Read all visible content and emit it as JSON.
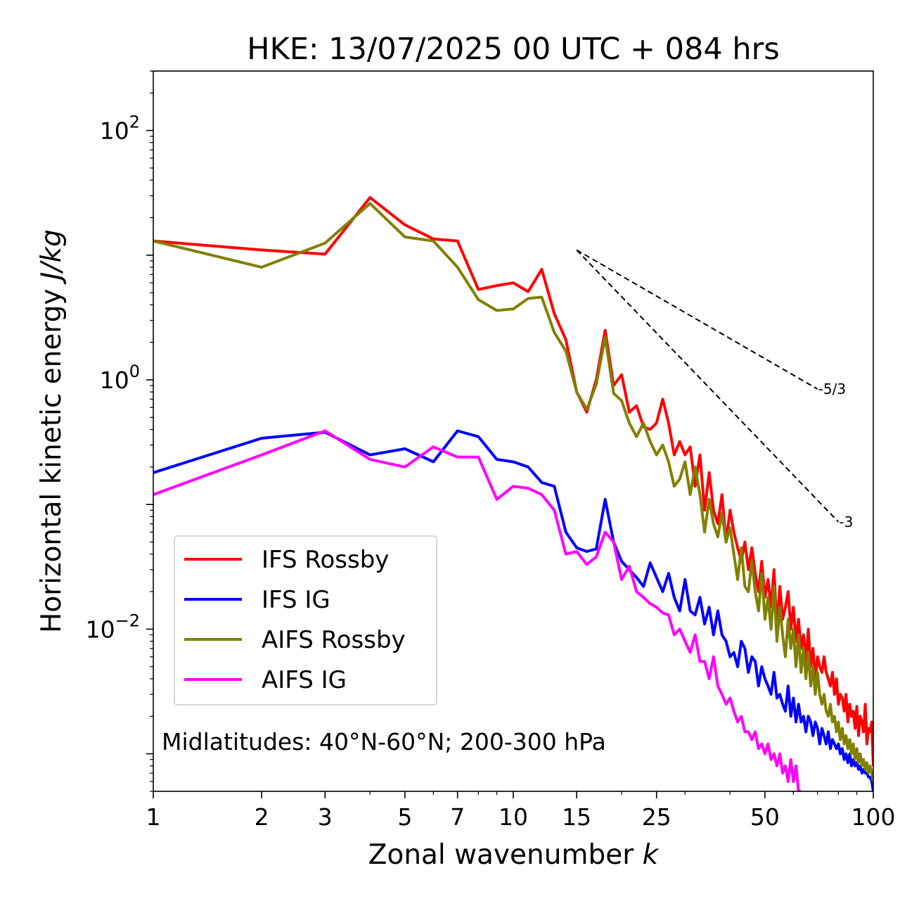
{
  "chart_data": {
    "type": "line",
    "title": "HKE: 13/07/2025 00 UTC + 084 hrs",
    "xlabel": "Zonal wavenumber",
    "xlabel_var": "k",
    "ylabel": "Horizontal kinetic energy",
    "ylabel_unit": "J/kg",
    "xscale": "log",
    "yscale": "log",
    "xlim": [
      1,
      100
    ],
    "ylim": [
      0.0005,
      300
    ],
    "xticks": [
      1,
      2,
      3,
      5,
      7,
      10,
      15,
      25,
      50,
      100
    ],
    "xtick_labels": [
      "1",
      "2",
      "3",
      "5",
      "7",
      "10",
      "15",
      "25",
      "50",
      "100"
    ],
    "yticks": [
      {
        "value": 100,
        "base": "10",
        "exp": "2"
      },
      {
        "value": 1,
        "base": "10",
        "exp": "0"
      },
      {
        "value": 0.01,
        "base": "10",
        "exp": "−2"
      }
    ],
    "grid": false,
    "legend_position": "lower-left",
    "annotation": "Midlatitudes: 40°N-60°N; 200-300 hPa",
    "reference_lines": [
      {
        "label": "-5/3",
        "slope": -1.6667,
        "x0": 15,
        "y0": 11,
        "x1": 70
      },
      {
        "label": "-3",
        "slope": -3,
        "x0": 15,
        "y0": 11,
        "x1": 80
      }
    ],
    "series": [
      {
        "name": "IFS Rossby",
        "color": "#ff0000",
        "x": [
          1,
          2,
          3,
          4,
          5,
          6,
          7,
          8,
          9,
          10,
          11,
          12,
          13,
          14,
          15,
          16,
          17,
          18,
          19,
          20,
          21,
          22,
          23,
          24,
          25,
          26,
          27,
          28,
          29,
          30,
          31,
          32,
          33,
          34,
          35,
          36,
          37,
          38,
          39,
          40,
          41,
          42,
          43,
          44,
          45,
          46,
          47,
          48,
          49,
          50,
          51,
          52,
          53,
          54,
          55,
          56,
          57,
          58,
          59,
          60,
          61,
          62,
          63,
          64,
          65,
          66,
          67,
          68,
          69,
          70,
          71,
          72,
          73,
          74,
          75,
          76,
          77,
          78,
          79,
          80,
          81,
          82,
          83,
          84,
          85,
          86,
          87,
          88,
          89,
          90,
          91,
          92,
          93,
          94,
          95,
          96,
          97,
          98,
          99,
          100
        ],
        "y": [
          13,
          11,
          10.2,
          29,
          17.5,
          13.5,
          13,
          5.3,
          5.7,
          6,
          5.1,
          7.7,
          3.4,
          2.1,
          0.8,
          0.55,
          1,
          2.5,
          0.9,
          1.1,
          0.55,
          0.62,
          0.42,
          0.4,
          0.45,
          0.7,
          0.45,
          0.25,
          0.32,
          0.25,
          0.29,
          0.14,
          0.25,
          0.09,
          0.18,
          0.09,
          0.07,
          0.12,
          0.05,
          0.09,
          0.06,
          0.045,
          0.035,
          0.05,
          0.03,
          0.045,
          0.028,
          0.02,
          0.035,
          0.018,
          0.025,
          0.015,
          0.03,
          0.01,
          0.022,
          0.012,
          0.015,
          0.02,
          0.01,
          0.015,
          0.008,
          0.012,
          0.007,
          0.009,
          0.0055,
          0.01,
          0.005,
          0.007,
          0.004,
          0.006,
          0.005,
          0.0045,
          0.006,
          0.0045,
          0.004,
          0.0035,
          0.0045,
          0.003,
          0.004,
          0.0025,
          0.003,
          0.0028,
          0.0022,
          0.003,
          0.0018,
          0.0025,
          0.002,
          0.0022,
          0.0016,
          0.0024,
          0.0014,
          0.002,
          0.0018,
          0.0015,
          0.0025,
          0.0012,
          0.0016,
          0.0015,
          0.0018,
          0.0008
        ]
      },
      {
        "name": "IFS IG",
        "color": "#0000ff",
        "x": [
          1,
          2,
          3,
          4,
          5,
          6,
          7,
          8,
          9,
          10,
          11,
          12,
          13,
          14,
          15,
          16,
          17,
          18,
          19,
          20,
          21,
          22,
          23,
          24,
          25,
          26,
          27,
          28,
          29,
          30,
          31,
          32,
          33,
          34,
          35,
          36,
          37,
          38,
          39,
          40,
          41,
          42,
          43,
          44,
          45,
          46,
          47,
          48,
          49,
          50,
          51,
          52,
          53,
          54,
          55,
          56,
          57,
          58,
          59,
          60,
          61,
          62,
          63,
          64,
          65,
          66,
          67,
          68,
          69,
          70,
          71,
          72,
          73,
          74,
          75,
          76,
          77,
          78,
          79,
          80,
          81,
          82,
          83,
          84,
          85,
          86,
          87,
          88,
          89,
          90,
          91,
          92,
          93,
          94,
          95,
          96,
          97,
          98,
          99,
          100
        ],
        "y": [
          0.18,
          0.34,
          0.38,
          0.25,
          0.28,
          0.22,
          0.39,
          0.35,
          0.23,
          0.22,
          0.2,
          0.15,
          0.14,
          0.06,
          0.045,
          0.042,
          0.044,
          0.11,
          0.05,
          0.035,
          0.03,
          0.026,
          0.022,
          0.034,
          0.026,
          0.02,
          0.028,
          0.018,
          0.014,
          0.025,
          0.014,
          0.013,
          0.018,
          0.011,
          0.015,
          0.009,
          0.014,
          0.009,
          0.008,
          0.006,
          0.0065,
          0.005,
          0.008,
          0.007,
          0.0045,
          0.006,
          0.0055,
          0.0035,
          0.005,
          0.004,
          0.0035,
          0.003,
          0.0045,
          0.0028,
          0.003,
          0.0025,
          0.0022,
          0.0035,
          0.002,
          0.0028,
          0.0018,
          0.0025,
          0.0018,
          0.002,
          0.0015,
          0.002,
          0.0018,
          0.0014,
          0.0018,
          0.0016,
          0.0012,
          0.0016,
          0.0014,
          0.0012,
          0.0015,
          0.0011,
          0.0013,
          0.0012,
          0.0011,
          0.0012,
          0.001,
          0.0011,
          0.0009,
          0.001,
          0.00085,
          0.001,
          0.0008,
          0.0009,
          0.0008,
          0.00085,
          0.00075,
          0.0008,
          0.0007,
          0.00075,
          0.0007,
          0.0007,
          0.00065,
          0.00065,
          0.0006,
          0.0005
        ]
      },
      {
        "name": "AIFS Rossby",
        "color": "#808000",
        "x": [
          1,
          2,
          3,
          4,
          5,
          6,
          7,
          8,
          9,
          10,
          11,
          12,
          13,
          14,
          15,
          16,
          17,
          18,
          19,
          20,
          21,
          22,
          23,
          24,
          25,
          26,
          27,
          28,
          29,
          30,
          31,
          32,
          33,
          34,
          35,
          36,
          37,
          38,
          39,
          40,
          41,
          42,
          43,
          44,
          45,
          46,
          47,
          48,
          49,
          50,
          51,
          52,
          53,
          54,
          55,
          56,
          57,
          58,
          59,
          60,
          61,
          62,
          63,
          64,
          65,
          66,
          67,
          68,
          69,
          70,
          71,
          72,
          73,
          74,
          75,
          76,
          77,
          78,
          79,
          80,
          81,
          82,
          83,
          84,
          85,
          86,
          87,
          88,
          89,
          90,
          91,
          92,
          93,
          94,
          95,
          96,
          97,
          98,
          99,
          100
        ],
        "y": [
          13,
          8,
          12.5,
          26,
          14,
          13,
          8,
          4.4,
          3.6,
          3.7,
          4.5,
          4.6,
          2.4,
          1.7,
          0.8,
          0.58,
          0.92,
          2.2,
          0.78,
          0.68,
          0.45,
          0.35,
          0.45,
          0.32,
          0.25,
          0.3,
          0.22,
          0.14,
          0.16,
          0.22,
          0.12,
          0.2,
          0.12,
          0.06,
          0.11,
          0.07,
          0.055,
          0.085,
          0.05,
          0.065,
          0.04,
          0.025,
          0.045,
          0.022,
          0.02,
          0.035,
          0.02,
          0.014,
          0.028,
          0.012,
          0.018,
          0.01,
          0.022,
          0.008,
          0.015,
          0.009,
          0.006,
          0.012,
          0.007,
          0.01,
          0.005,
          0.009,
          0.0045,
          0.007,
          0.004,
          0.0065,
          0.0035,
          0.005,
          0.003,
          0.0045,
          0.003,
          0.0025,
          0.003,
          0.0022,
          0.002,
          0.0025,
          0.0018,
          0.002,
          0.0015,
          0.0018,
          0.0013,
          0.0016,
          0.0012,
          0.0014,
          0.0011,
          0.0013,
          0.001,
          0.0012,
          0.0009,
          0.0011,
          0.00085,
          0.001,
          0.0008,
          0.0009,
          0.00075,
          0.00085,
          0.0007,
          0.0008,
          0.0007,
          0.0006
        ]
      },
      {
        "name": "AIFS IG",
        "color": "#ff00ff",
        "x": [
          1,
          2,
          3,
          4,
          5,
          6,
          7,
          8,
          9,
          10,
          11,
          12,
          13,
          14,
          15,
          16,
          17,
          18,
          19,
          20,
          21,
          22,
          23,
          24,
          25,
          26,
          27,
          28,
          29,
          30,
          31,
          32,
          33,
          34,
          35,
          36,
          37,
          38,
          39,
          40,
          41,
          42,
          43,
          44,
          45,
          46,
          47,
          48,
          49,
          50,
          51,
          52,
          53,
          54,
          55,
          56,
          57,
          58,
          59,
          60,
          61,
          62,
          63
        ],
        "y": [
          0.12,
          0.25,
          0.39,
          0.23,
          0.2,
          0.29,
          0.24,
          0.24,
          0.11,
          0.14,
          0.135,
          0.12,
          0.09,
          0.04,
          0.042,
          0.033,
          0.038,
          0.06,
          0.05,
          0.025,
          0.032,
          0.02,
          0.018,
          0.016,
          0.015,
          0.0135,
          0.013,
          0.009,
          0.01,
          0.008,
          0.0065,
          0.009,
          0.0055,
          0.0055,
          0.004,
          0.006,
          0.0035,
          0.003,
          0.0025,
          0.0028,
          0.0022,
          0.0018,
          0.002,
          0.0015,
          0.0015,
          0.0013,
          0.0015,
          0.0011,
          0.0012,
          0.001,
          0.0012,
          0.0009,
          0.001,
          0.0008,
          0.001,
          0.0007,
          0.0008,
          0.0006,
          0.0009,
          0.0006,
          0.0008,
          0.0005,
          0.0005
        ]
      }
    ]
  }
}
